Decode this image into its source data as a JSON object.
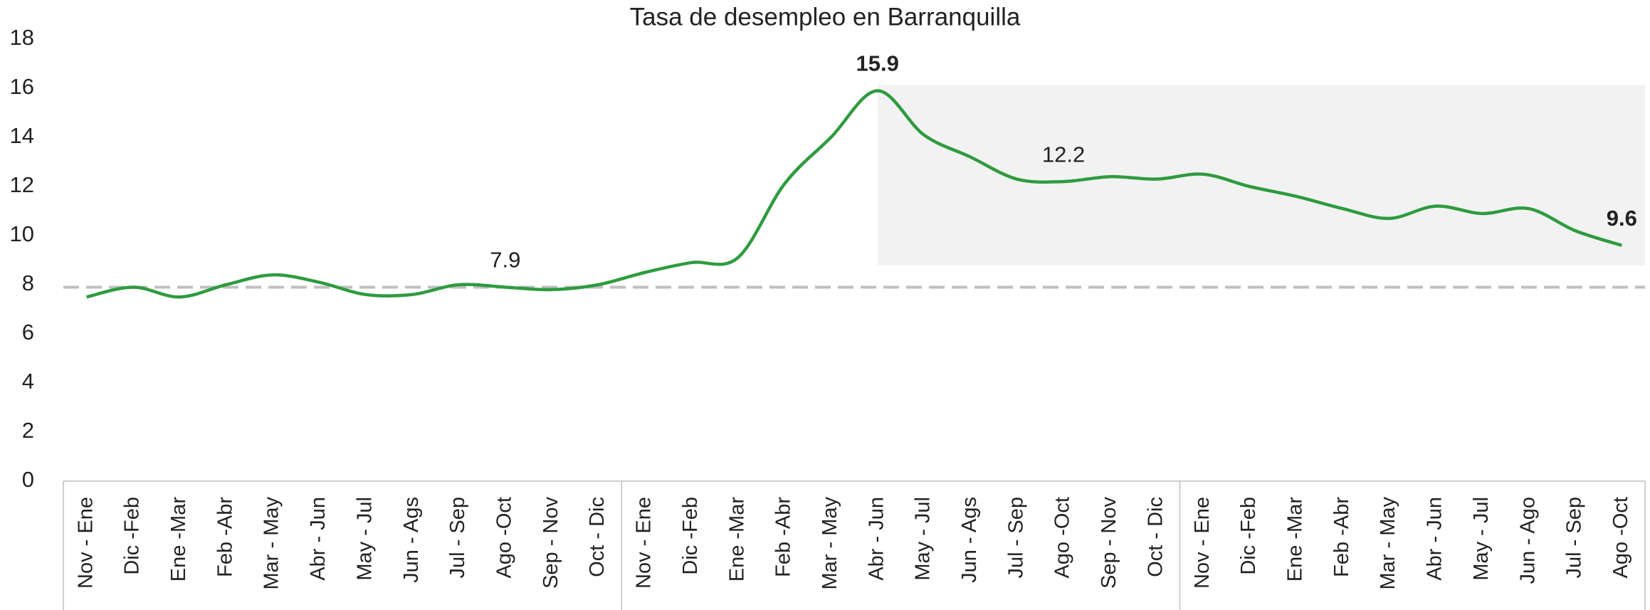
{
  "chart_data": {
    "type": "line",
    "title": "Tasa de desempleo en Barranquilla",
    "categories": [
      "Nov - Ene",
      "Dic -Feb",
      "Ene -Mar",
      "Feb -Abr",
      "Mar - May",
      "Abr - Jun",
      "May - Jul",
      "Jun - Ags",
      "Jul - Sep",
      "Ago -Oct",
      "Sep - Nov",
      "Oct - Dic",
      "Nov - Ene",
      "Dic -Feb",
      "Ene -Mar",
      "Feb -Abr",
      "Mar - May",
      "Abr - Jun",
      "May - Jul",
      "Jun - Ags",
      "Jul - Sep",
      "Ago -Oct",
      "Sep - Nov",
      "Oct - Dic",
      "Nov - Ene",
      "Dic -Feb",
      "Ene -Mar",
      "Feb -Abr",
      "Mar - May",
      "Abr - Jun",
      "May - Jul",
      "Jun - Ago",
      "Jul - Sep",
      "Ago -Oct"
    ],
    "series": [
      {
        "color": "#2e9b3f",
        "values": [
          7.5,
          7.9,
          7.5,
          8.0,
          8.4,
          8.1,
          7.6,
          7.6,
          8.0,
          7.9,
          7.8,
          8.0,
          8.5,
          8.9,
          9.1,
          12.1,
          14.0,
          15.9,
          14.1,
          13.2,
          12.3,
          12.2,
          12.4,
          12.3,
          12.5,
          12.0,
          11.6,
          11.1,
          10.7,
          11.2,
          10.9,
          11.1,
          10.2,
          9.6
        ],
        "value_labels": [
          null,
          null,
          null,
          null,
          null,
          null,
          null,
          null,
          null,
          "7.9",
          null,
          null,
          null,
          null,
          null,
          null,
          null,
          "15.9",
          null,
          null,
          null,
          "12.2",
          null,
          null,
          null,
          null,
          null,
          null,
          null,
          null,
          null,
          null,
          null,
          "9.6"
        ],
        "bold_labels": [
          17,
          33
        ]
      }
    ],
    "reference_line": {
      "value": 7.9,
      "color": "#bfbfbf"
    },
    "highlight": {
      "from_index": 17,
      "color": "#f2f2f2"
    },
    "group_sizes": [
      12,
      12,
      10
    ],
    "ylim": [
      0,
      18
    ],
    "yticks": [
      0,
      2,
      4,
      6,
      8,
      10,
      12,
      14,
      16,
      18
    ],
    "grid": false
  }
}
